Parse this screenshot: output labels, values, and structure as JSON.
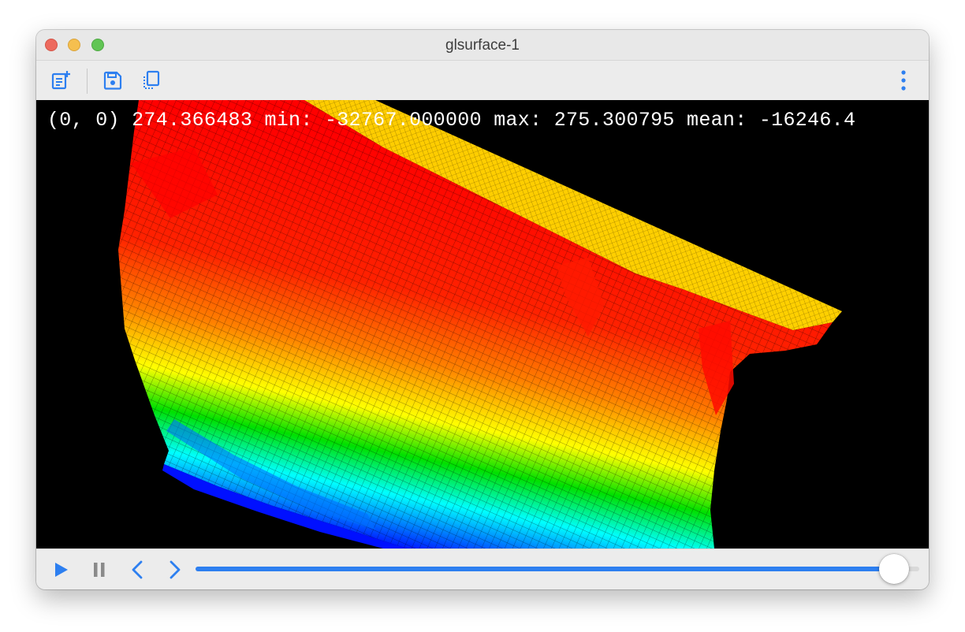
{
  "window": {
    "title": "glsurface-1"
  },
  "toolbar": {
    "icons": [
      "add-document-icon",
      "save-icon",
      "copy-frames-icon",
      "more-vertical-icon"
    ],
    "accent": "#2d7ff0"
  },
  "viewport": {
    "overlay_text": "(0, 0) 274.366483 min: -32767.000000 max: 275.300795 mean: -16246.4",
    "background": "#000000",
    "colormap": [
      "#0000ff",
      "#00ffff",
      "#00ff00",
      "#ffff00",
      "#ff8000",
      "#ff0000"
    ]
  },
  "controls": {
    "icons": [
      "play-icon",
      "pause-icon",
      "previous-icon",
      "next-icon"
    ],
    "progress": 0.965
  }
}
